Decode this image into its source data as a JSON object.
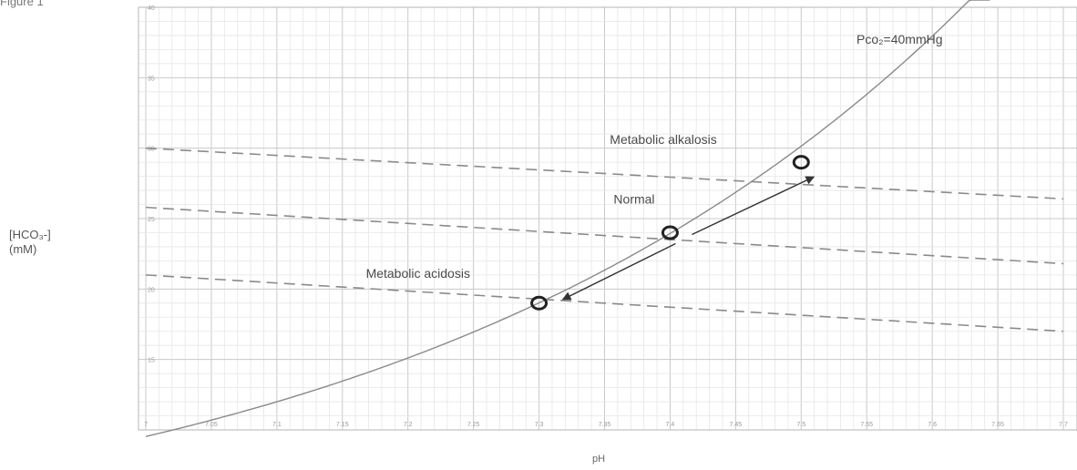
{
  "figure_label": "Figure 1",
  "chart_data": {
    "type": "line",
    "xlabel": "pH",
    "ylabel_lines": [
      "[HCO₃-]",
      "(mM)"
    ],
    "xlim": [
      7.0,
      7.7
    ],
    "ylim": [
      10,
      40
    ],
    "grid": true,
    "x_ticks": [
      7.0,
      7.05,
      7.1,
      7.15,
      7.2,
      7.25,
      7.3,
      7.35,
      7.4,
      7.45,
      7.5,
      7.55,
      7.6,
      7.65,
      7.7
    ],
    "x_tick_labels": [
      "7",
      "7.05",
      "7.1",
      "7.15",
      "7.2",
      "7.25",
      "7.3",
      "7.35",
      "7.4",
      "7.45",
      "7.5",
      "7.55",
      "7.6",
      "7.65",
      "7.7"
    ],
    "y_ticks": [
      15,
      20,
      25,
      30,
      35,
      40
    ],
    "y_tick_labels": [
      "15",
      "20",
      "25",
      "30",
      "35",
      "40"
    ],
    "isobar": {
      "label": "Pco₂=40mmHg",
      "pco2_mmHg": 40
    },
    "buffer_lines": [
      {
        "x": [
          7.0,
          7.7
        ],
        "y": [
          30.0,
          26.4
        ]
      },
      {
        "x": [
          7.0,
          7.7
        ],
        "y": [
          25.8,
          21.8
        ]
      },
      {
        "x": [
          7.0,
          7.7
        ],
        "y": [
          21.0,
          17.0
        ]
      }
    ],
    "points": [
      {
        "label": "Metabolic alkalosis",
        "x": 7.5,
        "y": 29.0
      },
      {
        "label": "Normal",
        "x": 7.4,
        "y": 24.0
      },
      {
        "label": "Metabolic acidosis",
        "x": 7.3,
        "y": 19.0
      }
    ]
  }
}
